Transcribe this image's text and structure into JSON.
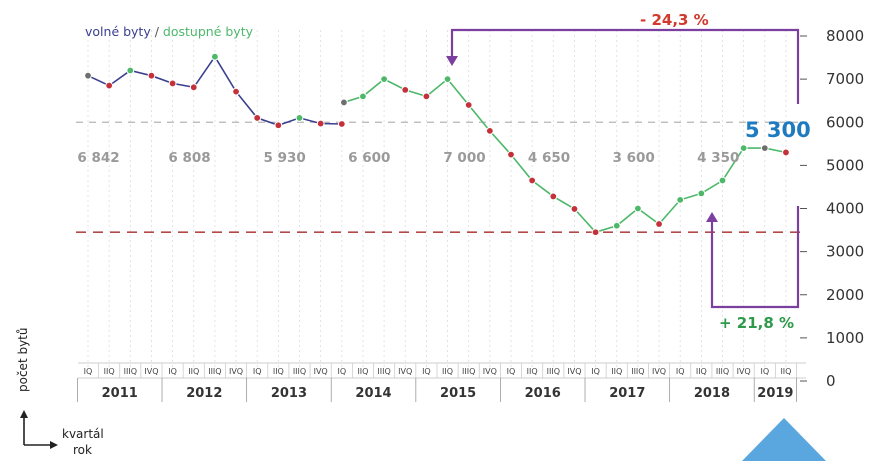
{
  "chart_data": {
    "type": "line",
    "legend": {
      "series_a": "volné byty",
      "separator": " / ",
      "series_b": "dostupné byty",
      "color_a": "#3a3f8f",
      "color_b": "#4db86a"
    },
    "y_ticks": [
      "0",
      "1000",
      "2000",
      "3000",
      "4000",
      "5000",
      "6000",
      "7000",
      "8000"
    ],
    "ylim": [
      0,
      8000
    ],
    "x_axis_label": "kvartál",
    "x_axis_label2": "rok",
    "y_axis_label": "počet bytů",
    "quarter_labels": [
      "IQ",
      "IIQ",
      "IIIQ",
      "IVQ",
      "IQ",
      "IIQ",
      "IIIQ",
      "IVQ",
      "IQ",
      "IIQ",
      "IIIQ",
      "IVQ",
      "IQ",
      "IIQ",
      "IIIQ",
      "IVQ",
      "IQ",
      "IIQ",
      "IIIQ",
      "IVQ",
      "IQ",
      "IIQ",
      "IIIQ",
      "IVQ",
      "IQ",
      "IIQ",
      "IIIQ",
      "IVQ",
      "IQ",
      "IIQ",
      "IIIQ",
      "IVQ",
      "IQ",
      "IIQ"
    ],
    "years": [
      {
        "label": "2011",
        "q0": 0,
        "q1": 3
      },
      {
        "label": "2012",
        "q0": 4,
        "q1": 7
      },
      {
        "label": "2013",
        "q0": 8,
        "q1": 11
      },
      {
        "label": "2014",
        "q0": 12,
        "q1": 15
      },
      {
        "label": "2015",
        "q0": 16,
        "q1": 19
      },
      {
        "label": "2016",
        "q0": 20,
        "q1": 23
      },
      {
        "label": "2017",
        "q0": 24,
        "q1": 27
      },
      {
        "label": "2018",
        "q0": 28,
        "q1": 31
      },
      {
        "label": "2019",
        "q0": 32,
        "q1": 33
      }
    ],
    "series": [
      {
        "name": "volné byty",
        "color": "#3a3f8f",
        "points": [
          {
            "q": 0,
            "y": 7080,
            "m": "gray"
          },
          {
            "q": 1,
            "y": 6850,
            "m": "red"
          },
          {
            "q": 2,
            "y": 7200,
            "m": "green"
          },
          {
            "q": 3,
            "y": 7080,
            "m": "red"
          },
          {
            "q": 4,
            "y": 6900,
            "m": "red"
          },
          {
            "q": 5,
            "y": 6810,
            "m": "red"
          },
          {
            "q": 6,
            "y": 7520,
            "m": "green"
          },
          {
            "q": 7,
            "y": 6710,
            "m": "red"
          },
          {
            "q": 8,
            "y": 6100,
            "m": "red"
          },
          {
            "q": 9,
            "y": 5930,
            "m": "red"
          },
          {
            "q": 10,
            "y": 6100,
            "m": "green"
          },
          {
            "q": 11,
            "y": 5970,
            "m": "red"
          },
          {
            "q": 12,
            "y": 5960,
            "m": "red"
          }
        ]
      },
      {
        "name": "dostupné byty",
        "color": "#4db86a",
        "points": [
          {
            "q": 12.1,
            "y": 6460,
            "m": "gray"
          },
          {
            "q": 13,
            "y": 6600,
            "m": "green"
          },
          {
            "q": 14,
            "y": 7000,
            "m": "green"
          },
          {
            "q": 15,
            "y": 6750,
            "m": "red"
          },
          {
            "q": 16,
            "y": 6600,
            "m": "red"
          },
          {
            "q": 17,
            "y": 7000,
            "m": "green"
          },
          {
            "q": 18,
            "y": 6400,
            "m": "red"
          },
          {
            "q": 19,
            "y": 5800,
            "m": "red"
          },
          {
            "q": 20,
            "y": 5250,
            "m": "red"
          },
          {
            "q": 21,
            "y": 4650,
            "m": "red"
          },
          {
            "q": 22,
            "y": 4280,
            "m": "red"
          },
          {
            "q": 23,
            "y": 3990,
            "m": "red"
          },
          {
            "q": 24,
            "y": 3450,
            "m": "red"
          },
          {
            "q": 25,
            "y": 3600,
            "m": "green"
          },
          {
            "q": 26,
            "y": 4000,
            "m": "green"
          },
          {
            "q": 27,
            "y": 3640,
            "m": "red"
          },
          {
            "q": 28,
            "y": 4200,
            "m": "green"
          },
          {
            "q": 29,
            "y": 4350,
            "m": "green"
          },
          {
            "q": 30,
            "y": 4650,
            "m": "green"
          },
          {
            "q": 31,
            "y": 5400,
            "m": "green"
          },
          {
            "q": 32,
            "y": 5400,
            "m": "gray"
          },
          {
            "q": 33,
            "y": 5300,
            "m": "red"
          }
        ]
      }
    ],
    "value_labels": [
      {
        "text": "6 842",
        "q": 0.5
      },
      {
        "text": "6 808",
        "q": 4.8
      },
      {
        "text": "5 930",
        "q": 9.3
      },
      {
        "text": "6 600",
        "q": 13.3
      },
      {
        "text": "7 000",
        "q": 17.8
      },
      {
        "text": "4 650",
        "q": 21.8
      },
      {
        "text": "3 600",
        "q": 25.8
      },
      {
        "text": "4 350",
        "q": 29.8
      }
    ],
    "reference_lines": [
      {
        "y": 6000,
        "color": "#b5b5b5"
      },
      {
        "y": 3450,
        "color": "#b34a4a"
      }
    ],
    "callouts": {
      "highlight_value": "5 300",
      "highlight_color": "#1e7bbf",
      "drop_label": "- 24,3 %",
      "drop_color": "#d13a2c",
      "rise_label": "+ 21,8 %",
      "rise_color": "#2e9a4a",
      "arrow_color": "#7b3fa0"
    },
    "marker_colors": {
      "red": "#c4313a",
      "green": "#4db86a",
      "gray": "#6e6e6e"
    },
    "grid": "vertical-dashed",
    "decoration_color": "#5aa7e0"
  }
}
